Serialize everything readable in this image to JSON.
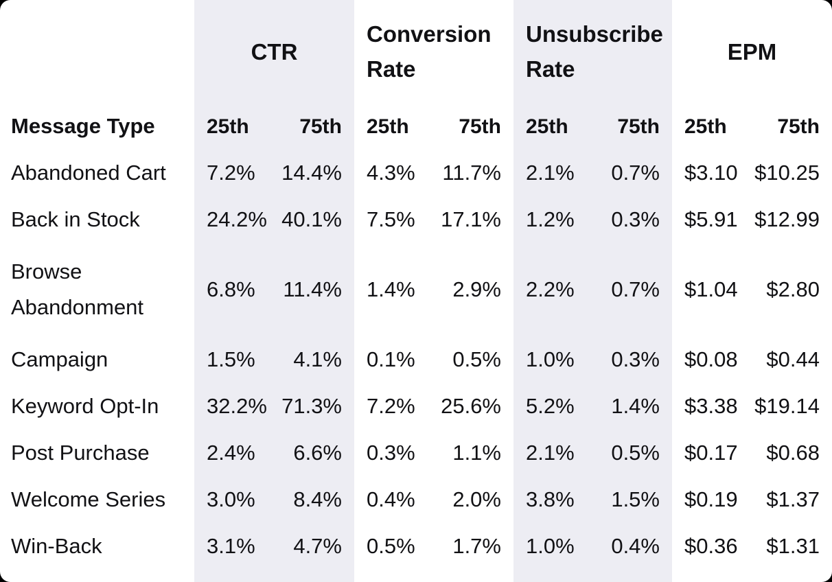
{
  "chart_data": {
    "type": "table",
    "row_header_label": "Message Type",
    "column_groups": [
      {
        "label": "CTR",
        "subcolumns": [
          "25th",
          "75th"
        ],
        "highlighted": true
      },
      {
        "label": "Conversion Rate",
        "subcolumns": [
          "25th",
          "75th"
        ],
        "highlighted": false
      },
      {
        "label": "Unsubscribe Rate",
        "subcolumns": [
          "25th",
          "75th"
        ],
        "highlighted": true
      },
      {
        "label": "EPM",
        "subcolumns": [
          "25th",
          "75th"
        ],
        "highlighted": false
      }
    ],
    "rows": [
      {
        "label": "Abandoned Cart",
        "cells": [
          "7.2%",
          "14.4%",
          "4.3%",
          "11.7%",
          "2.1%",
          "0.7%",
          "$3.10",
          "$10.25"
        ]
      },
      {
        "label": "Back in Stock",
        "cells": [
          "24.2%",
          "40.1%",
          "7.5%",
          "17.1%",
          "1.2%",
          "0.3%",
          "$5.91",
          "$12.99"
        ]
      },
      {
        "label": "Browse Abandonment",
        "cells": [
          "6.8%",
          "11.4%",
          "1.4%",
          "2.9%",
          "2.2%",
          "0.7%",
          "$1.04",
          "$2.80"
        ]
      },
      {
        "label": "Campaign",
        "cells": [
          "1.5%",
          "4.1%",
          "0.1%",
          "0.5%",
          "1.0%",
          "0.3%",
          "$0.08",
          "$0.44"
        ]
      },
      {
        "label": "Keyword Opt-In",
        "cells": [
          "32.2%",
          "71.3%",
          "7.2%",
          "25.6%",
          "5.2%",
          "1.4%",
          "$3.38",
          "$19.14"
        ]
      },
      {
        "label": "Post Purchase",
        "cells": [
          "2.4%",
          "6.6%",
          "0.3%",
          "1.1%",
          "2.1%",
          "0.5%",
          "$0.17",
          "$0.68"
        ]
      },
      {
        "label": "Welcome Series",
        "cells": [
          "3.0%",
          "8.4%",
          "0.4%",
          "2.0%",
          "3.8%",
          "1.5%",
          "$0.19",
          "$1.37"
        ]
      },
      {
        "label": "Win-Back",
        "cells": [
          "3.1%",
          "4.7%",
          "0.5%",
          "1.7%",
          "1.0%",
          "0.4%",
          "$0.36",
          "$1.31"
        ]
      }
    ],
    "colors": {
      "highlight_band": "#EDEDF3",
      "text": "#111114",
      "sheet_background": "#FFFFFF",
      "page_background": "#000000"
    },
    "layout_hints": {
      "highlighted_groups": [
        "CTR",
        "Unsubscribe Rate"
      ],
      "grid": "off",
      "legend": "none"
    }
  }
}
